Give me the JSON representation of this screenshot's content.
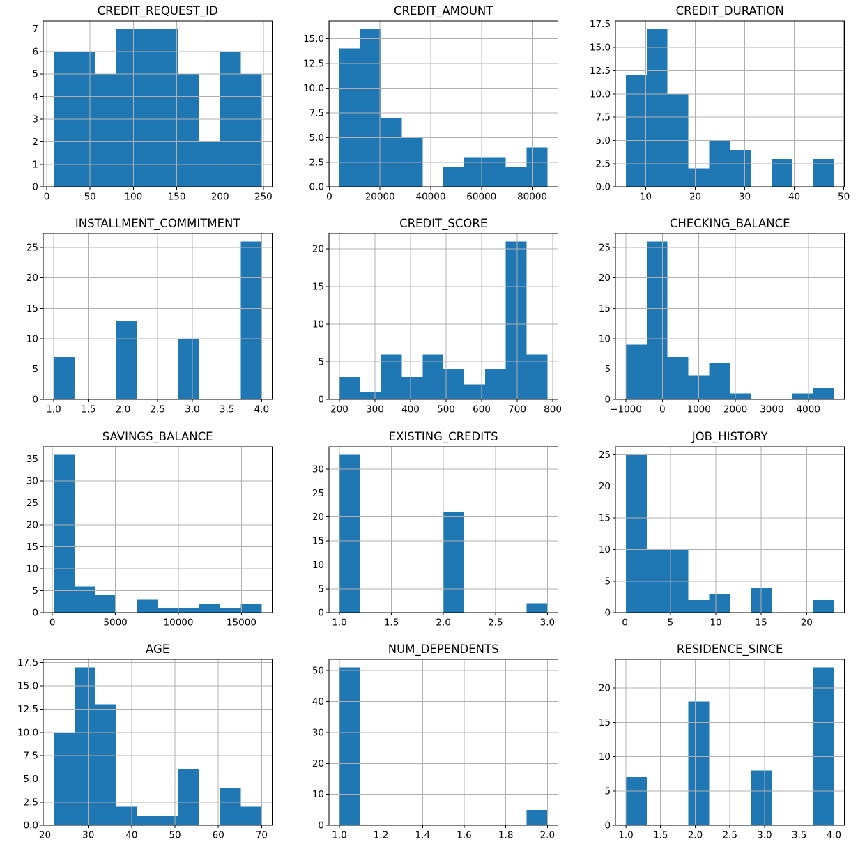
{
  "figure": {
    "description": "4x3 grid of histograms of credit dataset columns",
    "background": "#ffffff",
    "bar_color": "#1f77b4",
    "grid_color": "#b0b0b0",
    "axis_color": "#000000",
    "text_color": "#000000"
  },
  "chart_data": [
    {
      "type": "bar",
      "title": "CREDIT_REQUEST_ID",
      "bin_start": 8,
      "bin_width": 24,
      "counts": [
        6,
        6,
        5,
        7,
        7,
        7,
        5,
        2,
        6,
        5
      ],
      "xlim": [
        -4,
        260
      ],
      "ylim": [
        0,
        7.35
      ],
      "xtick_values": [
        0,
        50,
        100,
        150,
        200,
        250
      ],
      "xtick_labels": [
        "0",
        "50",
        "100",
        "150",
        "200",
        "250"
      ],
      "ytick_values": [
        0,
        1,
        2,
        3,
        4,
        5,
        6,
        7
      ],
      "ytick_labels": [
        "0",
        "1",
        "2",
        "3",
        "4",
        "5",
        "6",
        "7"
      ]
    },
    {
      "type": "bar",
      "title": "CREDIT_AMOUNT",
      "bin_start": 4000,
      "bin_width": 8200,
      "counts": [
        14,
        16,
        7,
        5,
        0,
        2,
        3,
        3,
        2,
        4
      ],
      "xlim": [
        -100,
        90100
      ],
      "ylim": [
        0,
        16.8
      ],
      "xtick_values": [
        0,
        20000,
        40000,
        60000,
        80000
      ],
      "xtick_labels": [
        "0",
        "20000",
        "40000",
        "60000",
        "80000"
      ],
      "ytick_values": [
        0,
        2.5,
        5,
        7.5,
        10,
        12.5,
        15
      ],
      "ytick_labels": [
        "0.0",
        "2.5",
        "5.0",
        "7.5",
        "10.0",
        "12.5",
        "15.0"
      ]
    },
    {
      "type": "bar",
      "title": "CREDIT_DURATION",
      "bin_start": 6,
      "bin_width": 4.2,
      "counts": [
        12,
        17,
        10,
        2,
        5,
        4,
        0,
        3,
        0,
        3
      ],
      "xlim": [
        3.9,
        50.1
      ],
      "ylim": [
        0,
        17.85
      ],
      "xtick_values": [
        10,
        20,
        30,
        40,
        50
      ],
      "xtick_labels": [
        "10",
        "20",
        "30",
        "40",
        "50"
      ],
      "ytick_values": [
        0,
        2.5,
        5,
        7.5,
        10,
        12.5,
        15,
        17.5
      ],
      "ytick_labels": [
        "0.0",
        "2.5",
        "5.0",
        "7.5",
        "10.0",
        "12.5",
        "15.0",
        "17.5"
      ]
    },
    {
      "type": "bar",
      "title": "INSTALLMENT_COMMITMENT",
      "bin_start": 1,
      "bin_width": 0.3,
      "counts": [
        7,
        0,
        0,
        13,
        0,
        0,
        10,
        0,
        0,
        26
      ],
      "xlim": [
        0.85,
        4.15
      ],
      "ylim": [
        0,
        27.3
      ],
      "xtick_values": [
        1,
        1.5,
        2,
        2.5,
        3,
        3.5,
        4
      ],
      "xtick_labels": [
        "1.0",
        "1.5",
        "2.0",
        "2.5",
        "3.0",
        "3.5",
        "4.0"
      ],
      "ytick_values": [
        0,
        5,
        10,
        15,
        20,
        25
      ],
      "ytick_labels": [
        "0",
        "5",
        "10",
        "15",
        "20",
        "25"
      ]
    },
    {
      "type": "bar",
      "title": "CREDIT_SCORE",
      "bin_start": 200,
      "bin_width": 58.5,
      "counts": [
        3,
        1,
        6,
        3,
        6,
        4,
        2,
        4,
        21,
        6
      ],
      "xlim": [
        170.75,
        814.25
      ],
      "ylim": [
        0,
        22.05
      ],
      "xtick_values": [
        200,
        300,
        400,
        500,
        600,
        700,
        800
      ],
      "xtick_labels": [
        "200",
        "300",
        "400",
        "500",
        "600",
        "700",
        "800"
      ],
      "ytick_values": [
        0,
        5,
        10,
        15,
        20
      ],
      "ytick_labels": [
        "0",
        "5",
        "10",
        "15",
        "20"
      ]
    },
    {
      "type": "bar",
      "title": "CHECKING_BALANCE",
      "bin_start": -1000,
      "bin_width": 570,
      "counts": [
        9,
        26,
        7,
        4,
        6,
        1,
        0,
        0,
        1,
        2
      ],
      "xlim": [
        -1285,
        4985
      ],
      "ylim": [
        0,
        27.3
      ],
      "xtick_values": [
        -1000,
        0,
        1000,
        2000,
        3000,
        4000
      ],
      "xtick_labels": [
        "−1000",
        "0",
        "1000",
        "2000",
        "3000",
        "4000"
      ],
      "ytick_values": [
        0,
        5,
        10,
        15,
        20,
        25
      ],
      "ytick_labels": [
        "0",
        "5",
        "10",
        "15",
        "20",
        "25"
      ]
    },
    {
      "type": "bar",
      "title": "SAVINGS_BALANCE",
      "bin_start": 100,
      "bin_width": 1650,
      "counts": [
        36,
        6,
        4,
        0,
        3,
        1,
        1,
        2,
        1,
        2
      ],
      "xlim": [
        -725,
        17425
      ],
      "ylim": [
        0,
        37.8
      ],
      "xtick_values": [
        0,
        5000,
        10000,
        15000
      ],
      "xtick_labels": [
        "0",
        "5000",
        "10000",
        "15000"
      ],
      "ytick_values": [
        0,
        5,
        10,
        15,
        20,
        25,
        30,
        35
      ],
      "ytick_labels": [
        "0",
        "5",
        "10",
        "15",
        "20",
        "25",
        "30",
        "35"
      ]
    },
    {
      "type": "bar",
      "title": "EXISTING_CREDITS",
      "bin_start": 1,
      "bin_width": 0.2,
      "counts": [
        33,
        0,
        0,
        0,
        0,
        21,
        0,
        0,
        0,
        2
      ],
      "xlim": [
        0.9,
        3.1
      ],
      "ylim": [
        0,
        34.65
      ],
      "xtick_values": [
        1,
        1.5,
        2,
        2.5,
        3
      ],
      "xtick_labels": [
        "1.0",
        "1.5",
        "2.0",
        "2.5",
        "3.0"
      ],
      "ytick_values": [
        0,
        5,
        10,
        15,
        20,
        25,
        30
      ],
      "ytick_labels": [
        "0",
        "5",
        "10",
        "15",
        "20",
        "25",
        "30"
      ]
    },
    {
      "type": "bar",
      "title": "JOB_HISTORY",
      "bin_start": 0.1,
      "bin_width": 2.29,
      "counts": [
        25,
        10,
        10,
        2,
        3,
        0,
        4,
        0,
        0,
        2
      ],
      "xlim": [
        -1.045,
        24.145
      ],
      "ylim": [
        0,
        26.25
      ],
      "xtick_values": [
        0,
        5,
        10,
        15,
        20
      ],
      "xtick_labels": [
        "0",
        "5",
        "10",
        "15",
        "20"
      ],
      "ytick_values": [
        0,
        5,
        10,
        15,
        20,
        25
      ],
      "ytick_labels": [
        "0",
        "5",
        "10",
        "15",
        "20",
        "25"
      ]
    },
    {
      "type": "bar",
      "title": "AGE",
      "bin_start": 22,
      "bin_width": 4.8,
      "counts": [
        10,
        17,
        13,
        2,
        1,
        1,
        6,
        0,
        4,
        2
      ],
      "xlim": [
        19.6,
        72.4
      ],
      "ylim": [
        0,
        17.85
      ],
      "xtick_values": [
        20,
        30,
        40,
        50,
        60,
        70
      ],
      "xtick_labels": [
        "20",
        "30",
        "40",
        "50",
        "60",
        "70"
      ],
      "ytick_values": [
        0,
        2.5,
        5,
        7.5,
        10,
        12.5,
        15,
        17.5
      ],
      "ytick_labels": [
        "0.0",
        "2.5",
        "5.0",
        "7.5",
        "10.0",
        "12.5",
        "15.0",
        "17.5"
      ]
    },
    {
      "type": "bar",
      "title": "NUM_DEPENDENTS",
      "bin_start": 1,
      "bin_width": 0.1,
      "counts": [
        51,
        0,
        0,
        0,
        0,
        0,
        0,
        0,
        0,
        5
      ],
      "xlim": [
        0.95,
        2.05
      ],
      "ylim": [
        0,
        53.55
      ],
      "xtick_values": [
        1,
        1.2,
        1.4,
        1.6,
        1.8,
        2
      ],
      "xtick_labels": [
        "1.0",
        "1.2",
        "1.4",
        "1.6",
        "1.8",
        "2.0"
      ],
      "ytick_values": [
        0,
        10,
        20,
        30,
        40,
        50
      ],
      "ytick_labels": [
        "0",
        "10",
        "20",
        "30",
        "40",
        "50"
      ]
    },
    {
      "type": "bar",
      "title": "RESIDENCE_SINCE",
      "bin_start": 1,
      "bin_width": 0.3,
      "counts": [
        7,
        0,
        0,
        18,
        0,
        0,
        8,
        0,
        0,
        23
      ],
      "xlim": [
        0.85,
        4.15
      ],
      "ylim": [
        0,
        24.15
      ],
      "xtick_values": [
        1,
        1.5,
        2,
        2.5,
        3,
        3.5,
        4
      ],
      "xtick_labels": [
        "1.0",
        "1.5",
        "2.0",
        "2.5",
        "3.0",
        "3.5",
        "4.0"
      ],
      "ytick_values": [
        0,
        5,
        10,
        15,
        20
      ],
      "ytick_labels": [
        "0",
        "5",
        "10",
        "15",
        "20"
      ]
    }
  ]
}
